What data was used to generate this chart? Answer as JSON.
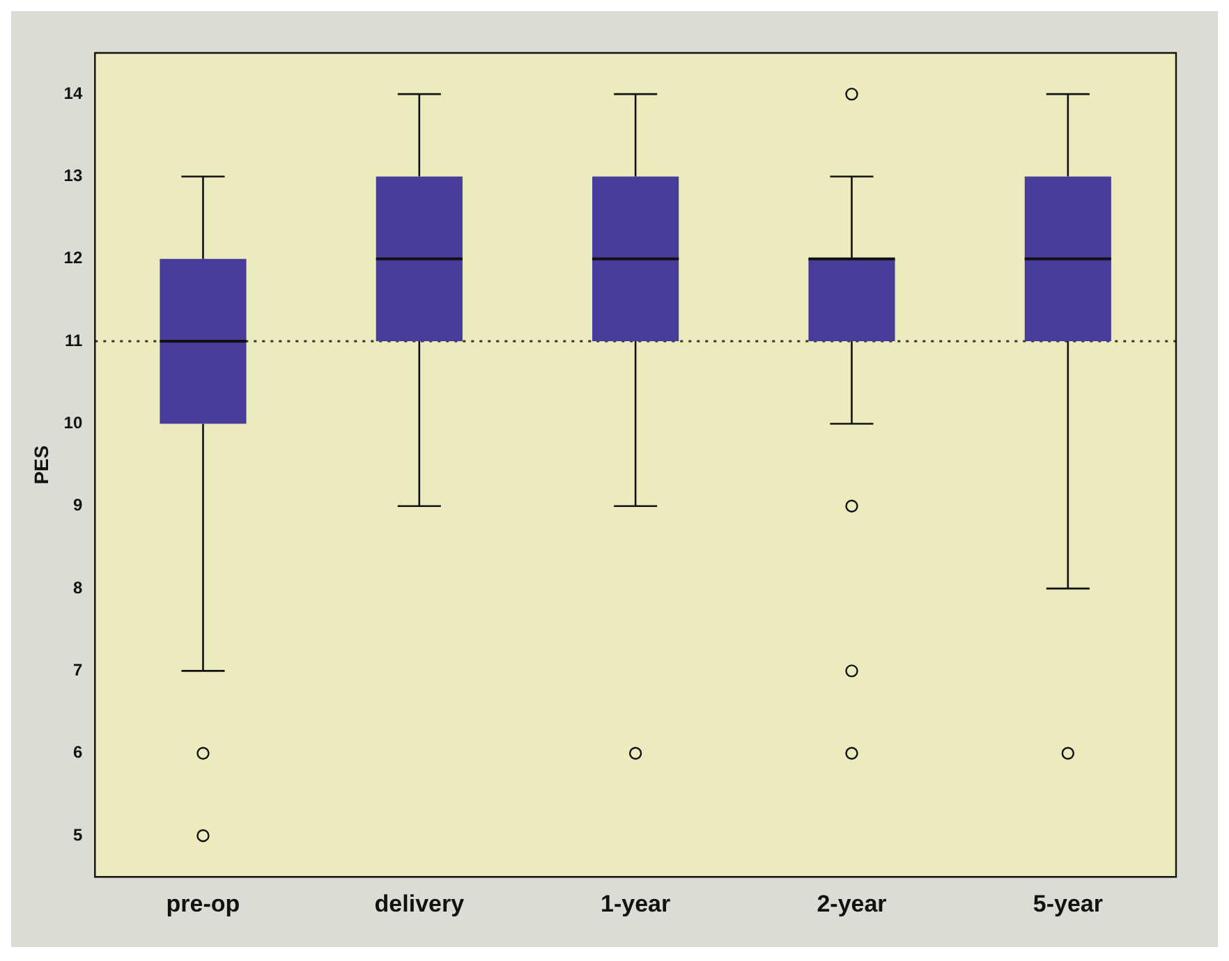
{
  "chart_data": {
    "type": "box",
    "ylabel": "PES",
    "categories": [
      "pre-op",
      "delivery",
      "1-year",
      "2-year",
      "5-year"
    ],
    "color": "#473c99",
    "boxes": [
      {
        "low": 7,
        "q1": 10,
        "median": 11,
        "q3": 12,
        "high": 13,
        "outliers": [
          6,
          5
        ]
      },
      {
        "low": 9,
        "q1": 11,
        "median": 12,
        "q3": 13,
        "high": 14
      },
      {
        "low": 9,
        "q1": 11,
        "median": 12,
        "q3": 13,
        "high": 14,
        "outliers": [
          6
        ]
      },
      {
        "low": 10,
        "q1": 11,
        "median": 12,
        "q3": 12,
        "high": 13,
        "outliers": [
          14,
          9,
          7,
          6
        ]
      },
      {
        "low": 8,
        "q1": 11,
        "median": 12,
        "q3": 13,
        "high": 14,
        "outliers": [
          6
        ]
      }
    ],
    "ylim": [
      4.5,
      14.5
    ],
    "yticks": [
      5,
      6,
      7,
      8,
      9,
      10,
      11,
      12,
      13,
      14
    ],
    "grid": false,
    "legend": false,
    "ref_lines": [
      {
        "axis": "y",
        "value": 11,
        "line_style": "dotted"
      }
    ]
  }
}
